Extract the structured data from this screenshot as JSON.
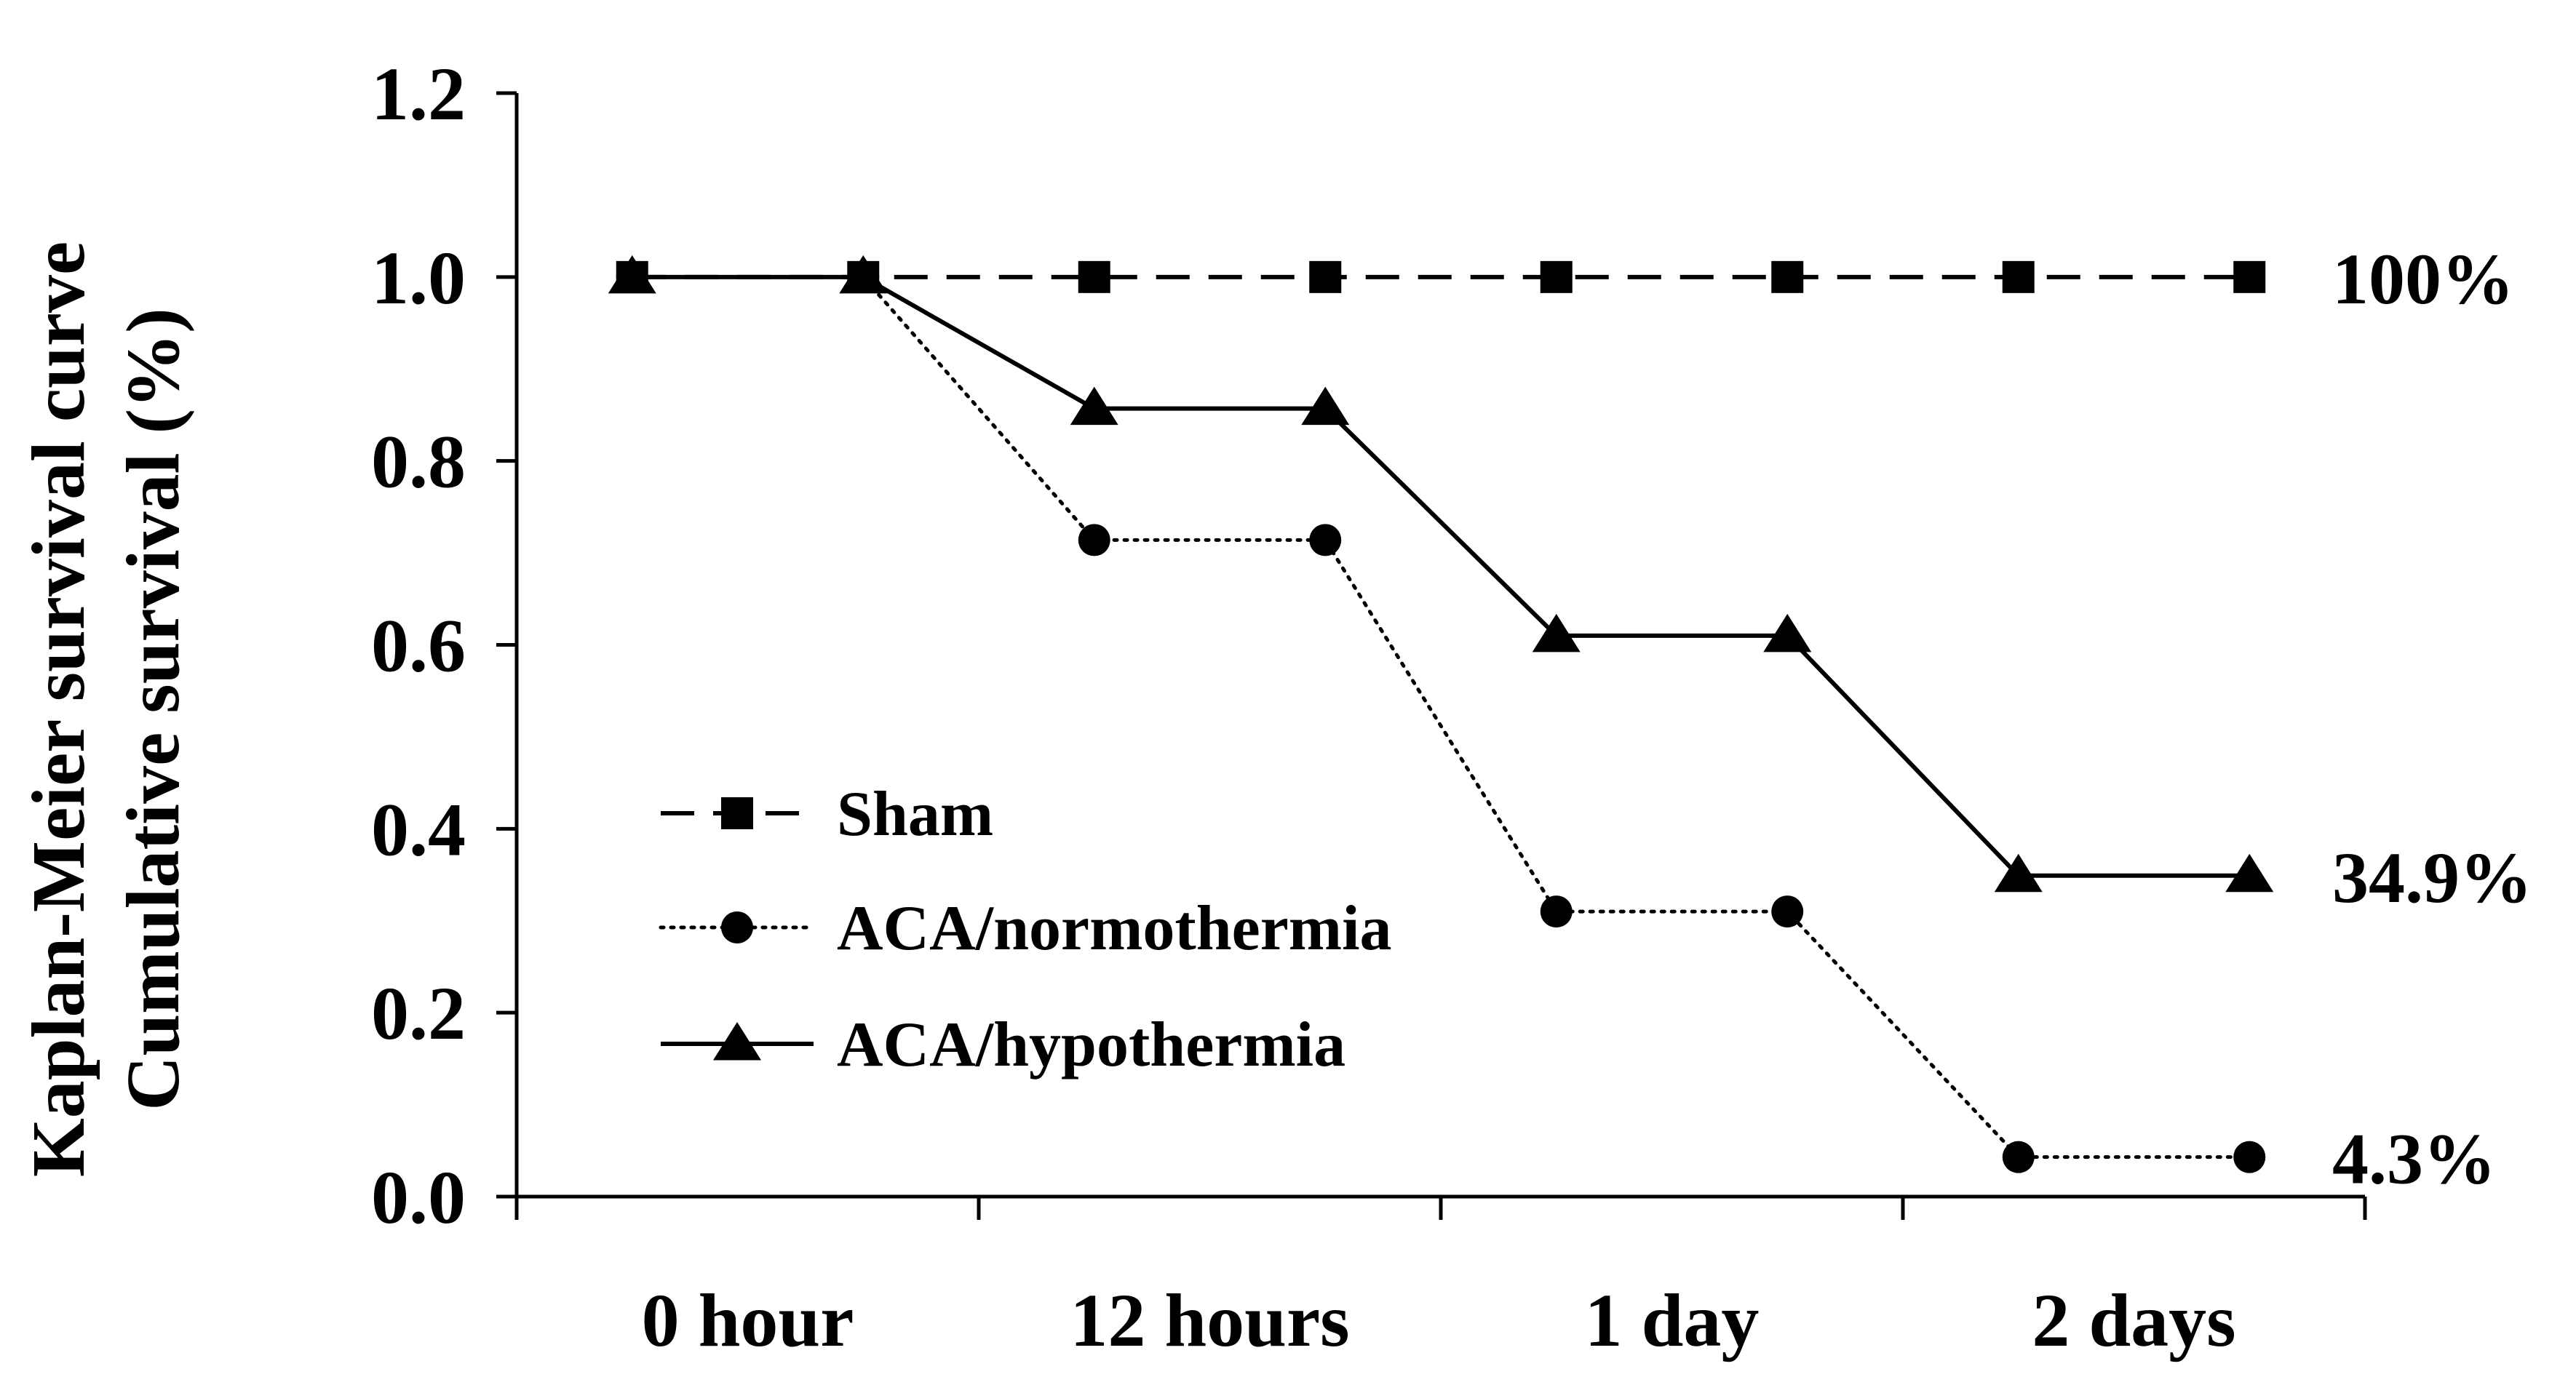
{
  "chart_data": {
    "type": "line",
    "title": "",
    "xlabel": "",
    "ylabel_lines": [
      "Kaplan-Meier survival curve",
      "Cumulative survival (%)"
    ],
    "ylim": [
      0,
      1.2
    ],
    "yticks": [
      0.0,
      0.2,
      0.4,
      0.6,
      0.8,
      1.0,
      1.2
    ],
    "ytick_labels": [
      "0.0",
      "0.2",
      "0.4",
      "0.6",
      "0.8",
      "1.0",
      "1.2"
    ],
    "x_categories": [
      "0 hour",
      "12 hours",
      "1 day",
      "2 days"
    ],
    "series": [
      {
        "name": "Sham",
        "style": "dashed",
        "marker": "square",
        "x": [
          0.25,
          0.75,
          1.25,
          1.75,
          2.25,
          2.75,
          3.25,
          3.75
        ],
        "y": [
          1.0,
          1.0,
          1.0,
          1.0,
          1.0,
          1.0,
          1.0,
          1.0
        ]
      },
      {
        "name": "ACA/normothermia",
        "style": "dotted",
        "marker": "circle",
        "x": [
          0.25,
          0.75,
          1.25,
          1.75,
          2.25,
          2.75,
          3.25,
          3.75
        ],
        "y": [
          1.0,
          1.0,
          0.714,
          0.714,
          0.31,
          0.31,
          0.043,
          0.043
        ]
      },
      {
        "name": "ACA/hypothermia",
        "style": "solid",
        "marker": "triangle",
        "x": [
          0.25,
          0.75,
          1.25,
          1.75,
          2.25,
          2.75,
          3.25,
          3.75
        ],
        "y": [
          1.0,
          1.0,
          0.857,
          0.857,
          0.61,
          0.61,
          0.349,
          0.349
        ]
      }
    ],
    "end_labels": [
      {
        "text": "100%",
        "y": 1.0
      },
      {
        "text": "34.9%",
        "y": 0.349
      },
      {
        "text": "4.3%",
        "y": 0.043
      }
    ],
    "legend_position": "lower-left",
    "colors": {
      "line": "#000000",
      "background": "#ffffff"
    }
  }
}
